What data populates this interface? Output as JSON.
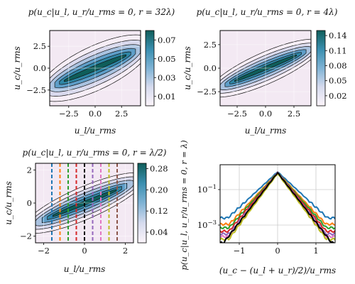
{
  "chart_data": [
    {
      "type": "heatmap",
      "title": "p(u_c|u_l, u_r/u_rms = 0, r = 32λ)",
      "xlabel": "u_l/u_rms",
      "ylabel": "u_c/u_rms",
      "xlim": [
        -4.3,
        4.3
      ],
      "ylim": [
        -4.3,
        4.3
      ],
      "xticks": [
        "−2.5",
        "0.0",
        "2.5"
      ],
      "xtick_values": [
        -2.5,
        0,
        2.5
      ],
      "yticks": [
        "−2.5",
        "0.0",
        "2.5"
      ],
      "ytick_values": [
        -2.5,
        0,
        2.5
      ],
      "slope": 0.5,
      "sigma": 0.9,
      "colorbar": {
        "ticks": [
          "0.01",
          "0.03",
          "0.05",
          "0.07"
        ],
        "tick_values": [
          0.01,
          0.03,
          0.05,
          0.07
        ],
        "range": [
          0.0,
          0.08
        ]
      },
      "grid": true
    },
    {
      "type": "heatmap",
      "title": "p(u_c|u_l, u_r/u_rms = 0, r = 4λ)",
      "xlabel": "u_l/u_rms",
      "ylabel": "u_c/u_rms",
      "xlim": [
        -4.0,
        4.0
      ],
      "ylim": [
        -4.0,
        4.0
      ],
      "xticks": [
        "−2.5",
        "0.0",
        "2.5"
      ],
      "xtick_values": [
        -2.5,
        0,
        2.5
      ],
      "yticks": [
        "−2.5",
        "0.0",
        "2.5"
      ],
      "ytick_values": [
        -2.5,
        0,
        2.5
      ],
      "slope": 0.5,
      "sigma": 0.6,
      "colorbar": {
        "ticks": [
          "0.02",
          "0.05",
          "0.08",
          "0.11",
          "0.14"
        ],
        "tick_values": [
          0.02,
          0.05,
          0.08,
          0.11,
          0.14
        ],
        "range": [
          0.0,
          0.15
        ]
      },
      "grid": true
    },
    {
      "type": "heatmap",
      "title": "p(u_c|u_l, u_r/u_rms = 0, r = λ/2)",
      "xlabel": "u_l/u_rms",
      "ylabel": "u_c/u_rms",
      "xlim": [
        -2.4,
        2.4
      ],
      "ylim": [
        -2.4,
        2.4
      ],
      "xticks": [
        "−2",
        "0",
        "2"
      ],
      "xtick_values": [
        -2,
        0,
        2
      ],
      "yticks": [
        "−2",
        "0",
        "2"
      ],
      "ytick_values": [
        -2,
        0,
        2
      ],
      "slope": 0.5,
      "sigma": 0.35,
      "colorbar": {
        "ticks": [
          "0.04",
          "0.12",
          "0.20",
          "0.28"
        ],
        "tick_values": [
          0.04,
          0.12,
          0.2,
          0.28
        ],
        "range": [
          0.0,
          0.3
        ]
      },
      "vlines": [
        {
          "x": -1.6,
          "color": "#1f77b4"
        },
        {
          "x": -1.2,
          "color": "#ff7f0e"
        },
        {
          "x": -0.8,
          "color": "#2ca02c"
        },
        {
          "x": -0.4,
          "color": "#d62728"
        },
        {
          "x": 0.0,
          "color": "#000000"
        },
        {
          "x": 0.4,
          "color": "#9467bd"
        },
        {
          "x": 0.8,
          "color": "#e377c2"
        },
        {
          "x": 1.2,
          "color": "#bcbd22"
        },
        {
          "x": 1.6,
          "color": "#8c564b"
        }
      ],
      "grid": true
    },
    {
      "type": "line",
      "xlabel": "(u_c − (u_l + u_r)/2)/u_rms",
      "ylabel": "p(u_c|u_l, u_r/u_rms = 0, r = λ)",
      "xlim": [
        -1.5,
        1.5
      ],
      "ylim_log10": [
        -4.0,
        0.4
      ],
      "yscale": "log",
      "xticks": [
        "−1",
        "0",
        "1"
      ],
      "xtick_values": [
        -1,
        0,
        1
      ],
      "yticks": [
        "10^−1",
        "10^−3"
      ],
      "ytick_values": [
        -1,
        -3
      ],
      "series": [
        {
          "color": "#1f77b4",
          "peak": 0.0,
          "slope": 2.0,
          "floor": -2.6
        },
        {
          "color": "#ff7f0e",
          "peak": -0.05,
          "slope": 2.3,
          "floor": -2.95
        },
        {
          "color": "#2ca02c",
          "peak": -0.05,
          "slope": 2.45,
          "floor": -3.15
        },
        {
          "color": "#d62728",
          "peak": -0.05,
          "slope": 2.6,
          "floor": -3.35
        },
        {
          "color": "#9467bd",
          "peak": -0.05,
          "slope": 2.75,
          "floor": -3.5
        },
        {
          "color": "#e377c2",
          "peak": -0.05,
          "slope": 2.85,
          "floor": -3.65
        },
        {
          "color": "#bcbd22",
          "peak": -0.1,
          "slope": 2.9,
          "floor": -3.8
        },
        {
          "color": "#000000",
          "peak": -0.05,
          "slope": 2.8,
          "floor": -4.0
        }
      ],
      "grid": true
    }
  ]
}
